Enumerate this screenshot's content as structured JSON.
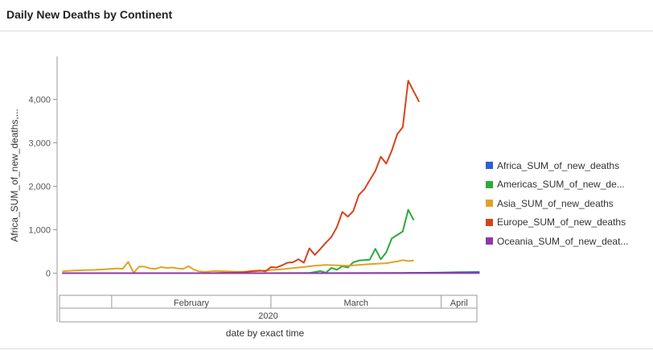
{
  "panel": {
    "title": "Daily New Deaths by Continent"
  },
  "chart_data": {
    "type": "line",
    "title": "Daily New Deaths by Continent",
    "xlabel": "date by exact time",
    "ylabel": "Africa_SUM_of_new_deaths,...",
    "ylim": [
      -600,
      4950
    ],
    "yticks": [
      0,
      1000,
      2000,
      3000,
      4000
    ],
    "ytick_labels": [
      "0",
      "1,000",
      "2,000",
      "3,000",
      "4,000"
    ],
    "x_months": [
      "February",
      "March",
      "April"
    ],
    "x_year": "2020",
    "x_start": "2020-01-23",
    "x_end": "2020-04-07",
    "n_days": 76,
    "legend_position": "right",
    "series": [
      {
        "name": "Africa_SUM_of_new_deaths",
        "label": "Africa_SUM_of_new_deaths",
        "color": "#2f5fd0",
        "points": [
          [
            0,
            0
          ],
          [
            40,
            0
          ],
          [
            55,
            2
          ],
          [
            62,
            5
          ],
          [
            68,
            12
          ],
          [
            72,
            20
          ],
          [
            76,
            25
          ]
        ]
      },
      {
        "name": "Americas_SUM_of_new_deaths",
        "label": "Americas_SUM_of_new_de...",
        "color": "#2ea93b",
        "points": [
          [
            0,
            0
          ],
          [
            37,
            0
          ],
          [
            45,
            5
          ],
          [
            47,
            50
          ],
          [
            48,
            10
          ],
          [
            49,
            120
          ],
          [
            50,
            80
          ],
          [
            51,
            160
          ],
          [
            52,
            130
          ],
          [
            53,
            250
          ],
          [
            54,
            290
          ],
          [
            55,
            300
          ],
          [
            56,
            310
          ],
          [
            57,
            560
          ],
          [
            58,
            320
          ],
          [
            59,
            480
          ],
          [
            60,
            800
          ],
          [
            61,
            880
          ],
          [
            62,
            960
          ],
          [
            63,
            1460
          ],
          [
            64,
            1220
          ]
        ]
      },
      {
        "name": "Asia_SUM_of_new_deaths",
        "label": "Asia_SUM_of_new_deaths",
        "color": "#e0a324",
        "points": [
          [
            0,
            40
          ],
          [
            2,
            60
          ],
          [
            4,
            70
          ],
          [
            6,
            75
          ],
          [
            8,
            90
          ],
          [
            10,
            110
          ],
          [
            11,
            100
          ],
          [
            12,
            260
          ],
          [
            13,
            10
          ],
          [
            14,
            150
          ],
          [
            15,
            150
          ],
          [
            16,
            110
          ],
          [
            17,
            100
          ],
          [
            18,
            140
          ],
          [
            19,
            120
          ],
          [
            20,
            130
          ],
          [
            21,
            110
          ],
          [
            22,
            100
          ],
          [
            23,
            160
          ],
          [
            24,
            80
          ],
          [
            25,
            40
          ],
          [
            26,
            30
          ],
          [
            28,
            50
          ],
          [
            30,
            40
          ],
          [
            32,
            30
          ],
          [
            35,
            40
          ],
          [
            40,
            90
          ],
          [
            43,
            130
          ],
          [
            46,
            170
          ],
          [
            48,
            190
          ],
          [
            50,
            180
          ],
          [
            52,
            170
          ],
          [
            54,
            190
          ],
          [
            56,
            210
          ],
          [
            59,
            230
          ],
          [
            61,
            270
          ],
          [
            62,
            300
          ],
          [
            63,
            280
          ],
          [
            64,
            290
          ]
        ]
      },
      {
        "name": "Europe_SUM_of_new_deaths",
        "label": "Europe_SUM_of_new_deaths",
        "color": "#d4441c",
        "points": [
          [
            0,
            0
          ],
          [
            27,
            0
          ],
          [
            33,
            20
          ],
          [
            34,
            40
          ],
          [
            36,
            60
          ],
          [
            37,
            40
          ],
          [
            38,
            140
          ],
          [
            39,
            130
          ],
          [
            40,
            180
          ],
          [
            41,
            240
          ],
          [
            42,
            250
          ],
          [
            43,
            320
          ],
          [
            44,
            240
          ],
          [
            45,
            570
          ],
          [
            46,
            420
          ],
          [
            47,
            560
          ],
          [
            48,
            700
          ],
          [
            49,
            830
          ],
          [
            50,
            1060
          ],
          [
            51,
            1410
          ],
          [
            52,
            1300
          ],
          [
            53,
            1430
          ],
          [
            54,
            1800
          ],
          [
            55,
            1930
          ],
          [
            56,
            2140
          ],
          [
            57,
            2350
          ],
          [
            58,
            2680
          ],
          [
            59,
            2520
          ],
          [
            60,
            2820
          ],
          [
            61,
            3200
          ],
          [
            62,
            3360
          ],
          [
            63,
            4430
          ],
          [
            64,
            4180
          ],
          [
            65,
            3940
          ]
        ]
      },
      {
        "name": "Oceania_SUM_of_new_deaths",
        "label": "Oceania_SUM_of_new_deat...",
        "color": "#8c3aa6",
        "points": [
          [
            0,
            0
          ],
          [
            76,
            2
          ]
        ]
      }
    ]
  }
}
